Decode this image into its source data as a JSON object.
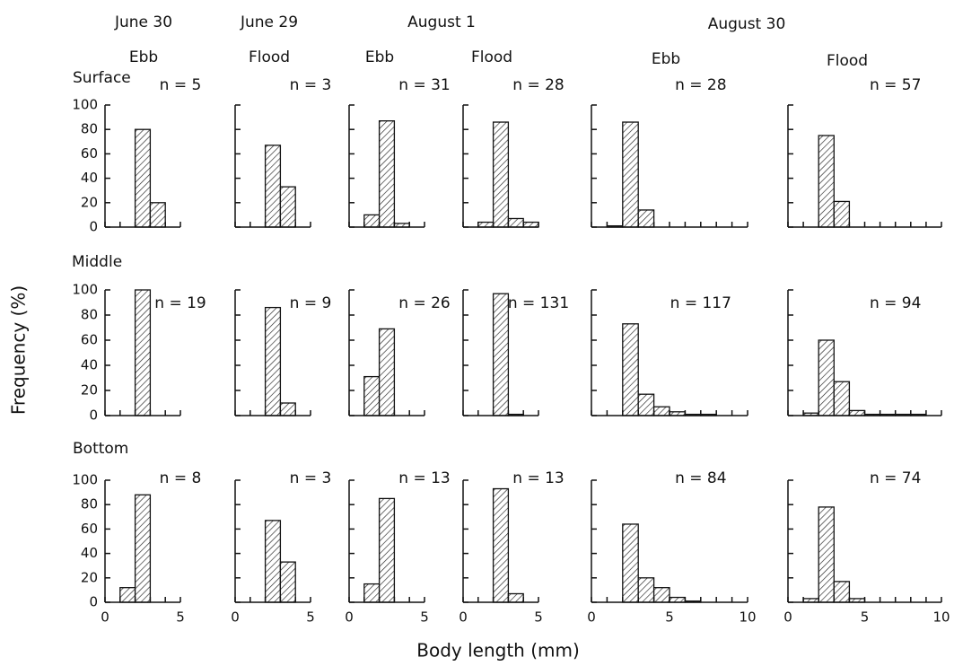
{
  "figure": {
    "dates": [
      "June 30",
      "June 29",
      "August 1",
      "August 30"
    ],
    "tides": [
      "Ebb",
      "Flood",
      "Ebb",
      "Flood",
      "Ebb",
      "Flood"
    ],
    "depths": [
      "Surface",
      "Middle",
      "Bottom"
    ],
    "ylabel": "Frequency (%)",
    "xlabel": "Body length (mm)"
  },
  "chart_data": [
    {
      "type": "histogram",
      "annotation": "n = 5",
      "bins": [
        0,
        1,
        2,
        3,
        4,
        5
      ],
      "values": [
        0,
        0,
        80,
        20,
        0
      ],
      "xlim": [
        0,
        5
      ],
      "xticks": [
        0,
        5
      ],
      "xminorticks": [
        1,
        2,
        3,
        4
      ],
      "ylim": [
        0,
        100
      ],
      "yticks": [
        0,
        20,
        40,
        60,
        80,
        100
      ]
    },
    {
      "type": "histogram",
      "annotation": "n = 3",
      "bins": [
        0,
        1,
        2,
        3,
        4,
        5
      ],
      "values": [
        0,
        0,
        67,
        33,
        0
      ],
      "xlim": [
        0,
        5
      ],
      "xticks": [
        0,
        5
      ],
      "xminorticks": [
        1,
        2,
        3,
        4
      ],
      "ylim": [
        0,
        100
      ],
      "yticks": [
        0,
        20,
        40,
        60,
        80,
        100
      ]
    },
    {
      "type": "histogram",
      "annotation": "n = 31",
      "bins": [
        0,
        1,
        2,
        3,
        4,
        5
      ],
      "values": [
        0,
        10,
        87,
        3,
        0
      ],
      "xlim": [
        0,
        5
      ],
      "xticks": [
        0,
        5
      ],
      "xminorticks": [
        1,
        2,
        3,
        4
      ],
      "ylim": [
        0,
        100
      ],
      "yticks": [
        0,
        20,
        40,
        60,
        80,
        100
      ]
    },
    {
      "type": "histogram",
      "annotation": "n = 28",
      "bins": [
        0,
        1,
        2,
        3,
        4,
        5
      ],
      "values": [
        0,
        4,
        86,
        7,
        4
      ],
      "xlim": [
        0,
        5
      ],
      "xticks": [
        0,
        5
      ],
      "xminorticks": [
        1,
        2,
        3,
        4
      ],
      "ylim": [
        0,
        100
      ],
      "yticks": [
        0,
        20,
        40,
        60,
        80,
        100
      ]
    },
    {
      "type": "histogram",
      "annotation": "n = 28",
      "bins": [
        0,
        1,
        2,
        3,
        4,
        5,
        6,
        7,
        8,
        9,
        10
      ],
      "values": [
        0,
        1,
        86,
        14,
        0,
        0,
        0,
        0,
        0,
        0
      ],
      "xlim": [
        0,
        10
      ],
      "xticks": [
        0,
        5,
        10
      ],
      "xminorticks": [
        1,
        2,
        3,
        4,
        6,
        7,
        8,
        9
      ],
      "ylim": [
        0,
        100
      ],
      "yticks": [
        0,
        20,
        40,
        60,
        80,
        100
      ]
    },
    {
      "type": "histogram",
      "annotation": "n = 57",
      "bins": [
        0,
        1,
        2,
        3,
        4,
        5,
        6,
        7,
        8,
        9,
        10
      ],
      "values": [
        0,
        0,
        75,
        21,
        0,
        0,
        0,
        0,
        0,
        0
      ],
      "xlim": [
        0,
        10
      ],
      "xticks": [
        0,
        5,
        10
      ],
      "xminorticks": [
        1,
        2,
        3,
        4,
        6,
        7,
        8,
        9
      ],
      "ylim": [
        0,
        100
      ],
      "yticks": [
        0,
        20,
        40,
        60,
        80,
        100
      ]
    },
    {
      "type": "histogram",
      "annotation": "n = 19",
      "bins": [
        0,
        1,
        2,
        3,
        4,
        5
      ],
      "values": [
        0,
        0,
        100,
        0,
        0
      ],
      "xlim": [
        0,
        5
      ],
      "xticks": [
        0,
        5
      ],
      "xminorticks": [
        1,
        2,
        3,
        4
      ],
      "ylim": [
        0,
        100
      ],
      "yticks": [
        0,
        20,
        40,
        60,
        80,
        100
      ]
    },
    {
      "type": "histogram",
      "annotation": "n = 9",
      "bins": [
        0,
        1,
        2,
        3,
        4,
        5
      ],
      "values": [
        0,
        0,
        86,
        10,
        0
      ],
      "xlim": [
        0,
        5
      ],
      "xticks": [
        0,
        5
      ],
      "xminorticks": [
        1,
        2,
        3,
        4
      ],
      "ylim": [
        0,
        100
      ],
      "yticks": [
        0,
        20,
        40,
        60,
        80,
        100
      ]
    },
    {
      "type": "histogram",
      "annotation": "n = 26",
      "bins": [
        0,
        1,
        2,
        3,
        4,
        5
      ],
      "values": [
        0,
        31,
        69,
        0,
        0
      ],
      "xlim": [
        0,
        5
      ],
      "xticks": [
        0,
        5
      ],
      "xminorticks": [
        1,
        2,
        3,
        4
      ],
      "ylim": [
        0,
        100
      ],
      "yticks": [
        0,
        20,
        40,
        60,
        80,
        100
      ]
    },
    {
      "type": "histogram",
      "annotation": "n = 131",
      "bins": [
        0,
        1,
        2,
        3,
        4,
        5
      ],
      "values": [
        0,
        0,
        97,
        1,
        0
      ],
      "xlim": [
        0,
        5
      ],
      "xticks": [
        0,
        5
      ],
      "xminorticks": [
        1,
        2,
        3,
        4
      ],
      "ylim": [
        0,
        100
      ],
      "yticks": [
        0,
        20,
        40,
        60,
        80,
        100
      ]
    },
    {
      "type": "histogram",
      "annotation": "n = 117",
      "bins": [
        0,
        1,
        2,
        3,
        4,
        5,
        6,
        7,
        8,
        9,
        10
      ],
      "values": [
        0,
        0,
        73,
        17,
        7,
        3,
        1,
        1,
        0,
        0
      ],
      "xlim": [
        0,
        10
      ],
      "xticks": [
        0,
        5,
        10
      ],
      "xminorticks": [
        1,
        2,
        3,
        4,
        6,
        7,
        8,
        9
      ],
      "ylim": [
        0,
        100
      ],
      "yticks": [
        0,
        20,
        40,
        60,
        80,
        100
      ]
    },
    {
      "type": "histogram",
      "annotation": "n = 94",
      "bins": [
        0,
        1,
        2,
        3,
        4,
        5,
        6,
        7,
        8,
        9,
        10
      ],
      "values": [
        0,
        2,
        60,
        27,
        4,
        1,
        1,
        1,
        1,
        0
      ],
      "xlim": [
        0,
        10
      ],
      "xticks": [
        0,
        5,
        10
      ],
      "xminorticks": [
        1,
        2,
        3,
        4,
        6,
        7,
        8,
        9
      ],
      "ylim": [
        0,
        100
      ],
      "yticks": [
        0,
        20,
        40,
        60,
        80,
        100
      ]
    },
    {
      "type": "histogram",
      "annotation": "n = 8",
      "bins": [
        0,
        1,
        2,
        3,
        4,
        5
      ],
      "values": [
        0,
        12,
        88,
        0,
        0
      ],
      "xlim": [
        0,
        5
      ],
      "xticks": [
        0,
        5
      ],
      "xminorticks": [
        1,
        2,
        3,
        4
      ],
      "ylim": [
        0,
        100
      ],
      "yticks": [
        0,
        20,
        40,
        60,
        80,
        100
      ]
    },
    {
      "type": "histogram",
      "annotation": "n = 3",
      "bins": [
        0,
        1,
        2,
        3,
        4,
        5
      ],
      "values": [
        0,
        0,
        67,
        33,
        0
      ],
      "xlim": [
        0,
        5
      ],
      "xticks": [
        0,
        5
      ],
      "xminorticks": [
        1,
        2,
        3,
        4
      ],
      "ylim": [
        0,
        100
      ],
      "yticks": [
        0,
        20,
        40,
        60,
        80,
        100
      ]
    },
    {
      "type": "histogram",
      "annotation": "n = 13",
      "bins": [
        0,
        1,
        2,
        3,
        4,
        5
      ],
      "values": [
        0,
        15,
        85,
        0,
        0
      ],
      "xlim": [
        0,
        5
      ],
      "xticks": [
        0,
        5
      ],
      "xminorticks": [
        1,
        2,
        3,
        4
      ],
      "ylim": [
        0,
        100
      ],
      "yticks": [
        0,
        20,
        40,
        60,
        80,
        100
      ]
    },
    {
      "type": "histogram",
      "annotation": "n = 13",
      "bins": [
        0,
        1,
        2,
        3,
        4,
        5
      ],
      "values": [
        0,
        0,
        93,
        7,
        0
      ],
      "xlim": [
        0,
        5
      ],
      "xticks": [
        0,
        5
      ],
      "xminorticks": [
        1,
        2,
        3,
        4
      ],
      "ylim": [
        0,
        100
      ],
      "yticks": [
        0,
        20,
        40,
        60,
        80,
        100
      ]
    },
    {
      "type": "histogram",
      "annotation": "n = 84",
      "bins": [
        0,
        1,
        2,
        3,
        4,
        5,
        6,
        7,
        8,
        9,
        10
      ],
      "values": [
        0,
        0,
        64,
        20,
        12,
        4,
        1,
        0,
        0,
        0
      ],
      "xlim": [
        0,
        10
      ],
      "xticks": [
        0,
        5,
        10
      ],
      "xminorticks": [
        1,
        2,
        3,
        4,
        6,
        7,
        8,
        9
      ],
      "ylim": [
        0,
        100
      ],
      "yticks": [
        0,
        20,
        40,
        60,
        80,
        100
      ]
    },
    {
      "type": "histogram",
      "annotation": "n = 74",
      "bins": [
        0,
        1,
        2,
        3,
        4,
        5,
        6,
        7,
        8,
        9,
        10
      ],
      "values": [
        0,
        3,
        78,
        17,
        3,
        0,
        0,
        0,
        0,
        0
      ],
      "xlim": [
        0,
        10
      ],
      "xticks": [
        0,
        5,
        10
      ],
      "xminorticks": [
        1,
        2,
        3,
        4,
        6,
        7,
        8,
        9
      ],
      "ylim": [
        0,
        100
      ],
      "yticks": [
        0,
        20,
        40,
        60,
        80,
        100
      ]
    }
  ]
}
